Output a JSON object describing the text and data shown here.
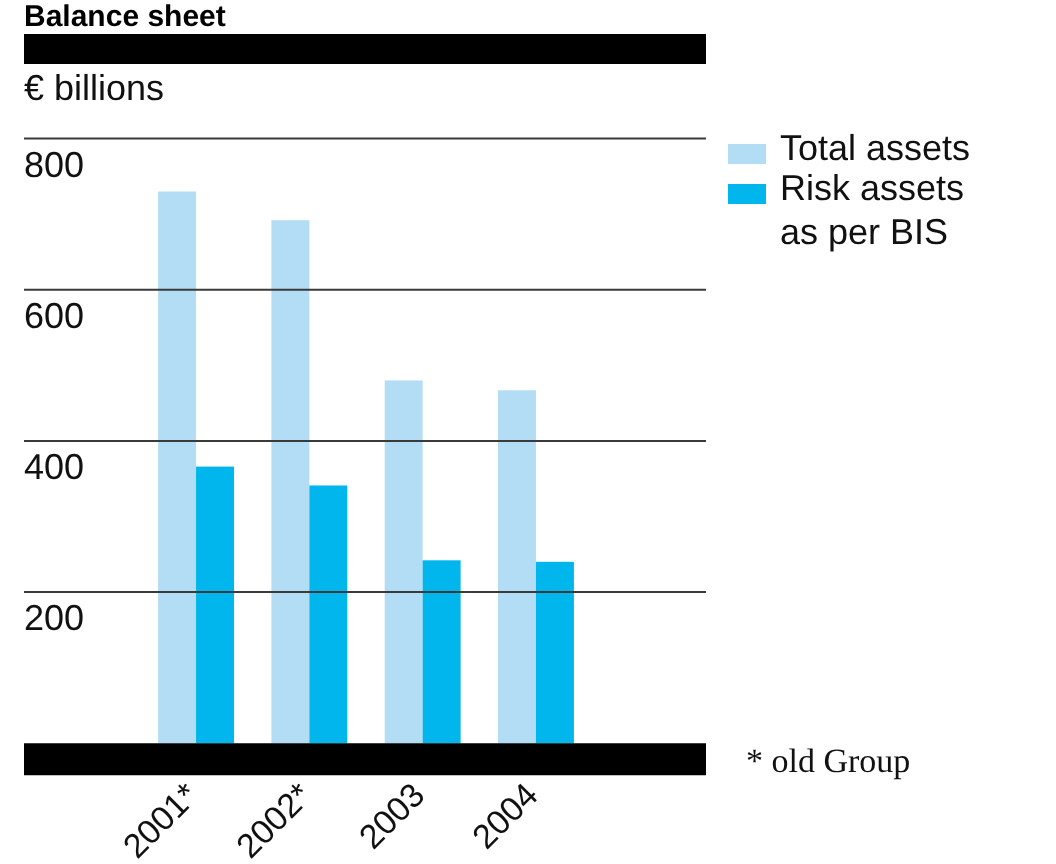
{
  "chart_data": {
    "type": "bar",
    "title": "Balance sheet",
    "ylabel": "€ billions",
    "categories": [
      "2001*",
      "2002*",
      "2003",
      "2004"
    ],
    "series": [
      {
        "name": "Total assets",
        "color": "#b3ddf5",
        "values": [
          730,
          692,
          480,
          467
        ]
      },
      {
        "name": "Risk assets as per BIS",
        "color": "#00b6ec",
        "values": [
          366,
          341,
          242,
          240
        ]
      }
    ],
    "ylim": [
      0,
      800
    ],
    "yticks": [
      200,
      400,
      600,
      800
    ],
    "grid": "y",
    "legend": "top right",
    "annotations": [
      "* old Group"
    ]
  }
}
